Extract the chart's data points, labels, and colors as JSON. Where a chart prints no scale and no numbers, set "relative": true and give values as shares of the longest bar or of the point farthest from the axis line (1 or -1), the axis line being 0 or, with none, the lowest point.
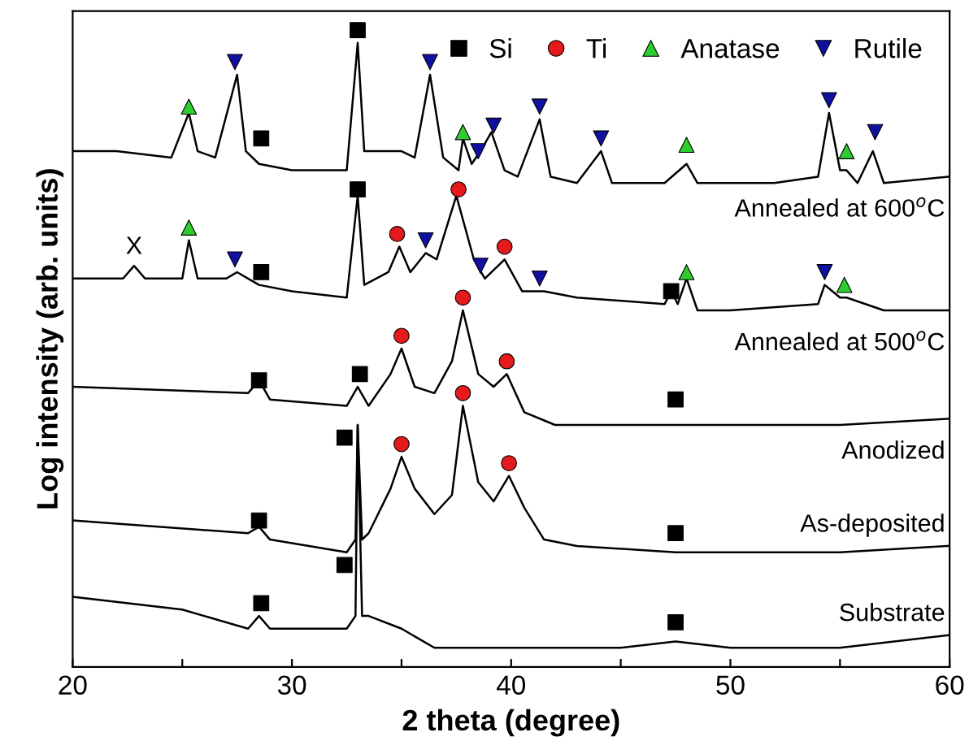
{
  "chart_data": {
    "type": "line",
    "relative": true,
    "xlabel": "2 theta (degree)",
    "ylabel": "Log intensity (arb. units)",
    "xlim": [
      20,
      60
    ],
    "xticks": [
      20,
      {
        "value": 25,
        "label": null
      },
      30,
      {
        "value": 35,
        "label": null
      },
      40,
      {
        "value": 45,
        "label": null
      },
      50,
      {
        "value": 55,
        "label": null
      },
      60
    ],
    "grid": false,
    "legend": "top right",
    "series": [
      {
        "name": "Annealed at 600$^{o}$C",
        "color": "#000000",
        "x": [
          20,
          22,
          24.5,
          25.3,
          25.7,
          26.5,
          27.5,
          27.9,
          28.5,
          30,
          32.5,
          33,
          33.3,
          35,
          35.6,
          36.3,
          36.9,
          37.6,
          37.8,
          38.2,
          38.6,
          39.1,
          39.7,
          40.3,
          41.3,
          41.8,
          43,
          44.1,
          44.6,
          47,
          48,
          48.5,
          52,
          54,
          54.5,
          55,
          55.3,
          55.8,
          56.5,
          57,
          60
        ],
        "values": [
          0.81,
          0.81,
          0.8,
          0.87,
          0.81,
          0.8,
          0.93,
          0.81,
          0.79,
          0.78,
          0.78,
          0.98,
          0.81,
          0.81,
          0.8,
          0.93,
          0.8,
          0.78,
          0.83,
          0.79,
          0.81,
          0.84,
          0.78,
          0.77,
          0.86,
          0.77,
          0.76,
          0.81,
          0.76,
          0.76,
          0.79,
          0.76,
          0.76,
          0.77,
          0.87,
          0.78,
          0.78,
          0.76,
          0.81,
          0.76,
          0.77
        ]
      },
      {
        "name": "Annealed at 500$^{o}$C",
        "color": "#000000",
        "x": [
          20,
          22.3,
          22.8,
          23.3,
          25.0,
          25.3,
          25.7,
          27,
          27.5,
          28.0,
          28.5,
          30,
          32.5,
          33,
          33.3,
          34.4,
          34.9,
          35.4,
          36.1,
          36.6,
          37.5,
          38.3,
          38.8,
          39.7,
          40.5,
          41.5,
          43,
          47,
          47.3,
          47.6,
          48.0,
          48.5,
          50,
          54,
          54.3,
          55,
          55.3,
          57,
          60
        ],
        "values": [
          0.61,
          0.61,
          0.63,
          0.61,
          0.61,
          0.67,
          0.61,
          0.61,
          0.62,
          0.61,
          0.6,
          0.59,
          0.58,
          0.74,
          0.6,
          0.62,
          0.66,
          0.62,
          0.65,
          0.64,
          0.74,
          0.64,
          0.61,
          0.64,
          0.59,
          0.59,
          0.58,
          0.57,
          0.59,
          0.57,
          0.61,
          0.56,
          0.56,
          0.57,
          0.6,
          0.58,
          0.58,
          0.56,
          0.56
        ]
      },
      {
        "name": "Anodized",
        "color": "#000000",
        "x": [
          20,
          28,
          28.5,
          29,
          32.5,
          33,
          33.5,
          34.5,
          35,
          35.6,
          36.5,
          37.3,
          37.8,
          38.5,
          39.2,
          39.8,
          40.6,
          42,
          47.5,
          50,
          55,
          60
        ],
        "values": [
          0.44,
          0.43,
          0.45,
          0.42,
          0.41,
          0.44,
          0.41,
          0.46,
          0.5,
          0.44,
          0.43,
          0.48,
          0.56,
          0.46,
          0.44,
          0.46,
          0.4,
          0.38,
          0.38,
          0.38,
          0.38,
          0.39
        ]
      },
      {
        "name": "As-deposited",
        "color": "#000000",
        "x": [
          20,
          28,
          28.5,
          29,
          32.5,
          32.9,
          33.0,
          33.2,
          33.5,
          34.5,
          35,
          35.6,
          36.5,
          37.3,
          37.8,
          38.5,
          39.2,
          39.9,
          40.6,
          41.5,
          43,
          47.5,
          50,
          55,
          60
        ],
        "values": [
          0.23,
          0.21,
          0.22,
          0.2,
          0.18,
          0.2,
          0.38,
          0.2,
          0.21,
          0.28,
          0.33,
          0.28,
          0.24,
          0.27,
          0.41,
          0.29,
          0.26,
          0.3,
          0.25,
          0.2,
          0.19,
          0.18,
          0.18,
          0.18,
          0.19
        ]
      },
      {
        "name": "Substrate",
        "color": "#000000",
        "x": [
          20,
          25,
          28,
          28.5,
          29,
          32.5,
          32.9,
          33.0,
          33.2,
          33.5,
          35,
          36.5,
          40,
          45,
          47.5,
          50,
          55,
          60
        ],
        "values": [
          0.11,
          0.09,
          0.06,
          0.08,
          0.06,
          0.06,
          0.08,
          0.38,
          0.08,
          0.08,
          0.06,
          0.03,
          0.03,
          0.03,
          0.04,
          0.03,
          0.03,
          0.05
        ]
      },
      {
        "type": "scatter",
        "name": "Si",
        "color": "#000000",
        "marker": "square",
        "x": [
          28.6,
          33.0,
          28.6,
          33.0,
          47.3,
          28.5,
          33.1,
          47.5,
          28.5,
          32.4,
          47.5,
          28.6,
          32.4,
          47.5
        ],
        "values": [
          0.83,
          1.0,
          0.62,
          0.75,
          0.59,
          0.45,
          0.46,
          0.42,
          0.23,
          0.36,
          0.21,
          0.1,
          0.16,
          0.07
        ]
      },
      {
        "type": "scatter",
        "name": "Ti",
        "color": "#e41a1c",
        "marker": "circle",
        "x": [
          34.8,
          37.6,
          39.7,
          35.0,
          37.8,
          39.8,
          35.0,
          37.8,
          39.9
        ],
        "values": [
          0.68,
          0.75,
          0.66,
          0.52,
          0.58,
          0.48,
          0.35,
          0.43,
          0.32
        ]
      },
      {
        "type": "scatter",
        "name": "Anatase",
        "color": "#2ecc2e",
        "marker": "triangle",
        "x": [
          25.3,
          37.8,
          48.0,
          55.3,
          25.3,
          48.0,
          55.2
        ],
        "values": [
          0.88,
          0.84,
          0.82,
          0.81,
          0.69,
          0.62,
          0.6
        ]
      },
      {
        "type": "scatter",
        "name": "Rutile",
        "color": "#1010a0",
        "marker": "triangle_down",
        "x": [
          27.4,
          36.3,
          38.5,
          39.2,
          41.3,
          44.1,
          54.5,
          56.6,
          27.4,
          36.1,
          38.6,
          41.3,
          54.3
        ],
        "values": [
          0.95,
          0.95,
          0.81,
          0.85,
          0.88,
          0.83,
          0.89,
          0.84,
          0.64,
          0.67,
          0.63,
          0.61,
          0.62
        ]
      }
    ],
    "annotations": [
      {
        "text": "X",
        "x": 22.8,
        "y": 0.63
      }
    ]
  }
}
